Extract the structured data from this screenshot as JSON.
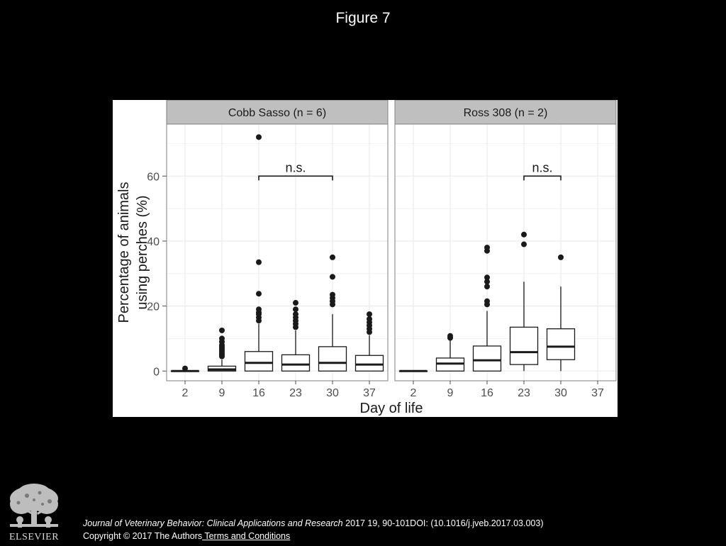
{
  "figure_title": "Figure 7",
  "citation": {
    "journal": "Journal of Veterinary Behavior: Clinical Applications and Research",
    "details": " 2017 19, 90-101DOI: (10.1016/j.jveb.2017.03.003)"
  },
  "copyright": {
    "text": "Copyright © 2017 The Authors",
    "link": " Terms and Conditions"
  },
  "publisher": {
    "name": "ELSEVIER"
  },
  "chart_data": {
    "type": "boxplot",
    "xlabel": "Day of life",
    "ylabel_lines": [
      "Percentage of animals",
      "using perches (%)"
    ],
    "ylim": [
      -3,
      76
    ],
    "yticks": [
      0,
      20,
      40,
      60
    ],
    "x_categories": [
      "2",
      "9",
      "16",
      "23",
      "30",
      "37"
    ],
    "grid": true,
    "colors": {
      "panel_bg": "#ffffff",
      "strip_bg": "#bfbfbf",
      "grid": "#ebebeb",
      "ink": "#1a1a1a"
    },
    "panels": [
      {
        "strip_label": "Cobb Sasso (n = 6)",
        "boxes": [
          {
            "day": "2",
            "lower_whisker": 0,
            "q1": 0,
            "median": 0,
            "q3": 0,
            "upper_whisker": 0,
            "outliers": [
              0.8
            ]
          },
          {
            "day": "9",
            "lower_whisker": 0,
            "q1": 0,
            "median": 0.5,
            "q3": 1.5,
            "upper_whisker": 3.5,
            "outliers": [
              4.5,
              5,
              5.5,
              6,
              6.5,
              7,
              7.5,
              8,
              9,
              10,
              12.5
            ]
          },
          {
            "day": "16",
            "lower_whisker": 0,
            "q1": 0,
            "median": 2.5,
            "q3": 6,
            "upper_whisker": 14.5,
            "outliers": [
              15.5,
              16.5,
              17.5,
              18,
              19,
              23.8,
              33.5,
              72
            ]
          },
          {
            "day": "23",
            "lower_whisker": 0,
            "q1": 0,
            "median": 2,
            "q3": 5,
            "upper_whisker": 12.5,
            "outliers": [
              13.5,
              14.5,
              15.5,
              16.5,
              17.5,
              19,
              21
            ]
          },
          {
            "day": "30",
            "lower_whisker": 0,
            "q1": 0,
            "median": 2.5,
            "q3": 7.5,
            "upper_whisker": 17.5,
            "outliers": [
              20.5,
              21.5,
              22.5,
              23.5,
              29,
              35
            ]
          },
          {
            "day": "37",
            "lower_whisker": 0,
            "q1": 0,
            "median": 2,
            "q3": 4.8,
            "upper_whisker": 11,
            "outliers": [
              12,
              13,
              14,
              15,
              16,
              17.5
            ]
          }
        ],
        "annotation": {
          "text": "n.s.",
          "from_day": "16",
          "to_day": "30",
          "y": 60
        }
      },
      {
        "strip_label": "Ross 308 (n = 2)",
        "boxes": [
          {
            "day": "2",
            "lower_whisker": 0,
            "q1": 0,
            "median": 0,
            "q3": 0,
            "upper_whisker": 0,
            "outliers": []
          },
          {
            "day": "9",
            "lower_whisker": 0,
            "q1": 0,
            "median": 2.3,
            "q3": 4,
            "upper_whisker": 9.5,
            "outliers": [
              10.2,
              10.8
            ]
          },
          {
            "day": "16",
            "lower_whisker": 0,
            "q1": 0,
            "median": 3.3,
            "q3": 7.7,
            "upper_whisker": 18.5,
            "outliers": [
              20.5,
              21.5,
              26,
              27.5,
              28.8,
              37,
              38
            ]
          },
          {
            "day": "23",
            "lower_whisker": 0,
            "q1": 2,
            "median": 5.8,
            "q3": 13.5,
            "upper_whisker": 27.5,
            "outliers": [
              39,
              42
            ]
          },
          {
            "day": "30",
            "lower_whisker": 0,
            "q1": 3.5,
            "median": 7.5,
            "q3": 13,
            "upper_whisker": 26,
            "outliers": [
              35
            ]
          }
        ],
        "annotation": {
          "text": "n.s.",
          "from_day": "23",
          "to_day": "30",
          "y": 60
        }
      }
    ]
  }
}
